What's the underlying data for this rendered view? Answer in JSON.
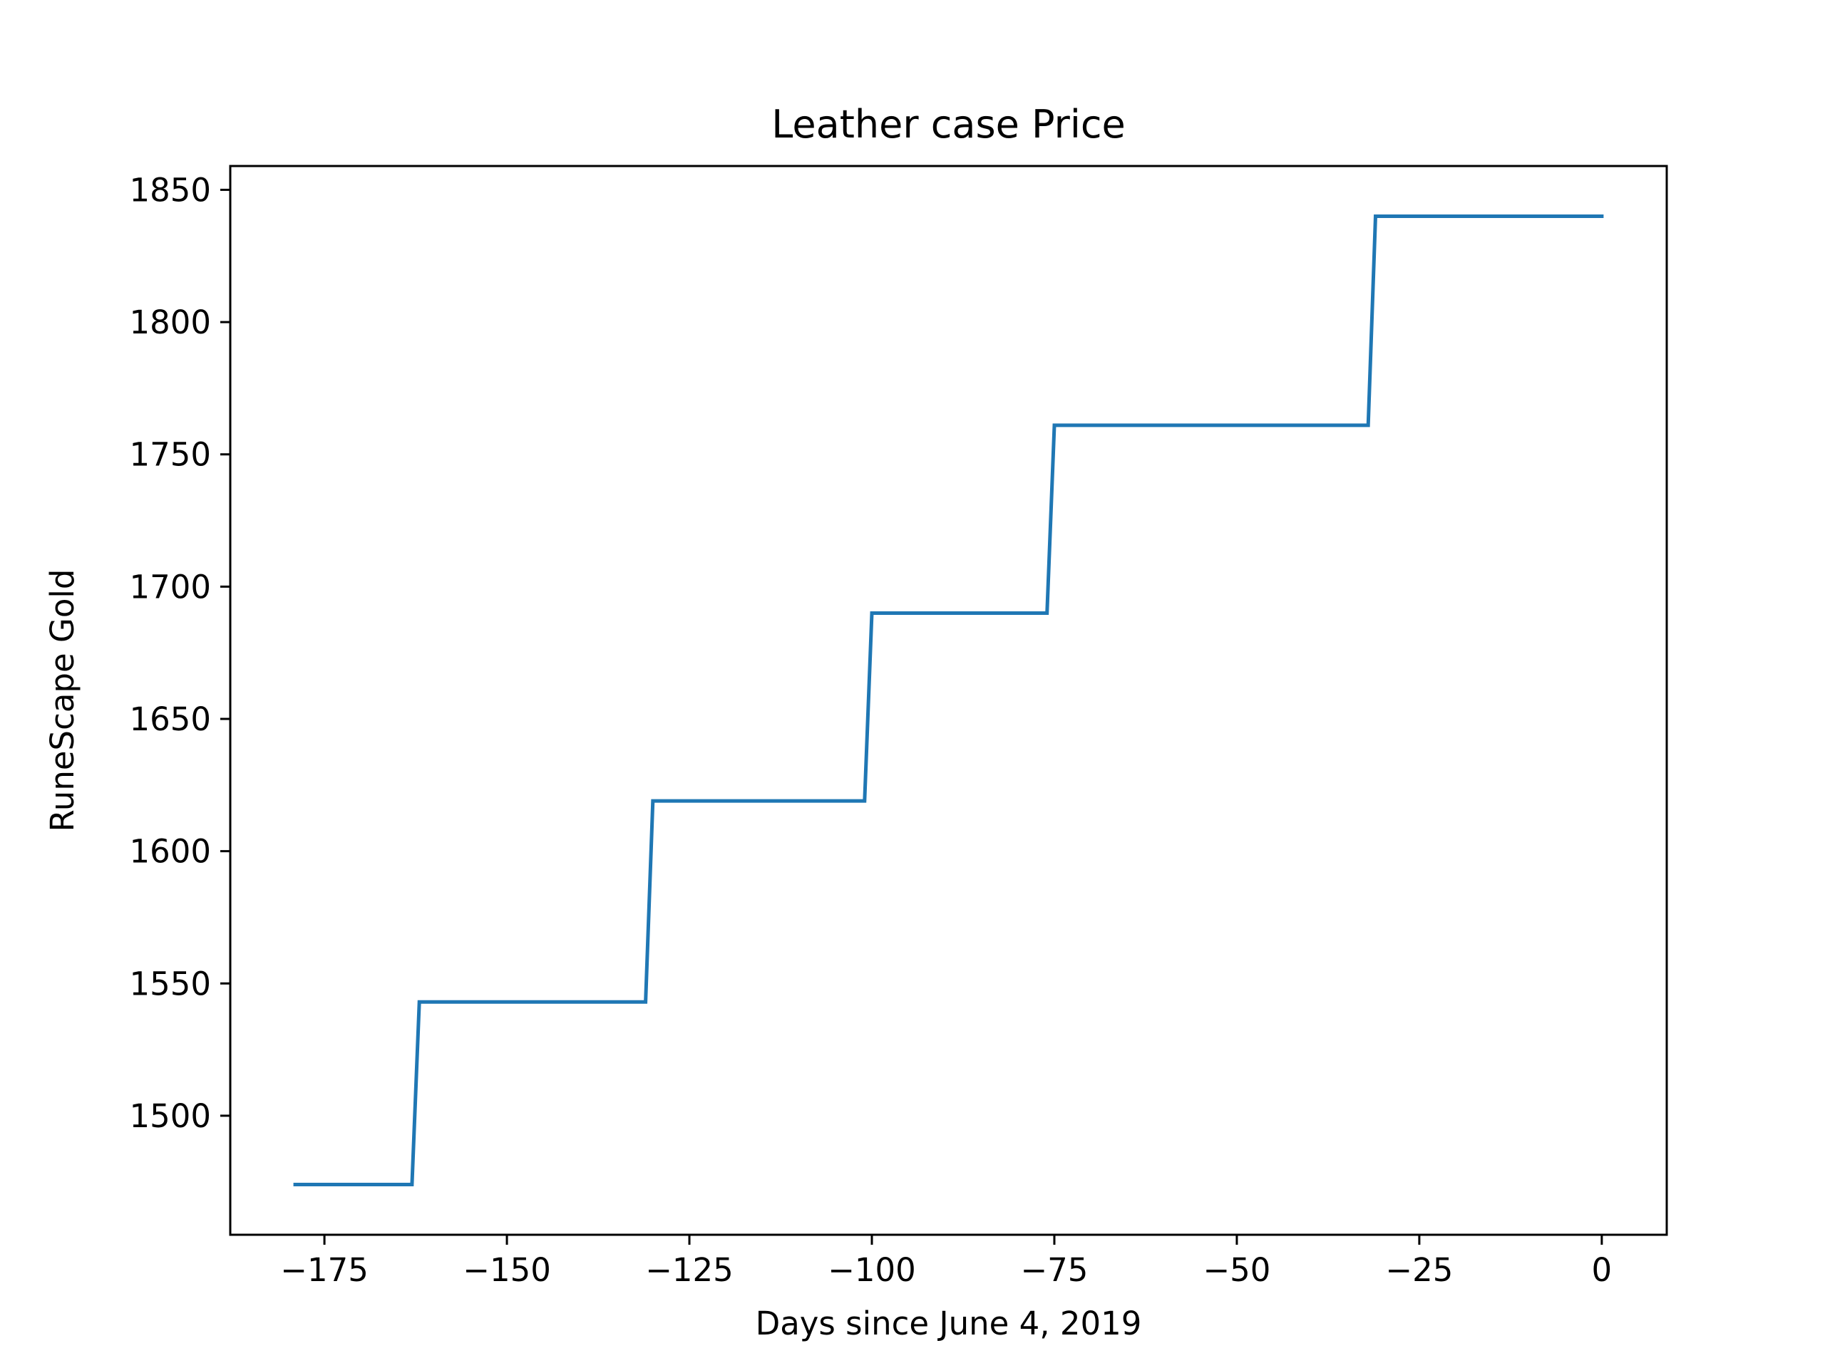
{
  "chart_data": {
    "type": "line",
    "title": "Leather case Price",
    "xlabel": "Days since June 4, 2019",
    "ylabel": "RuneScape Gold",
    "xlim": [
      -187.9,
      8.9
    ],
    "ylim": [
      1455,
      1859
    ],
    "xticks": [
      -175,
      -150,
      -125,
      -100,
      -75,
      -50,
      -25,
      0
    ],
    "xtick_labels": [
      "−175",
      "−150",
      "−125",
      "−100",
      "−75",
      "−50",
      "−25",
      "0"
    ],
    "yticks": [
      1500,
      1550,
      1600,
      1650,
      1700,
      1750,
      1800,
      1850
    ],
    "ytick_labels": [
      "1500",
      "1550",
      "1600",
      "1650",
      "1700",
      "1750",
      "1800",
      "1850"
    ],
    "grid": false,
    "series": [
      {
        "color": "#1f77b4",
        "x": [
          -179,
          -163,
          -162,
          -131,
          -130,
          -101,
          -100,
          -76,
          -75,
          -32,
          -31,
          0
        ],
        "y": [
          1474,
          1474,
          1543,
          1543,
          1619,
          1619,
          1690,
          1690,
          1761,
          1761,
          1840,
          1840
        ]
      }
    ]
  }
}
